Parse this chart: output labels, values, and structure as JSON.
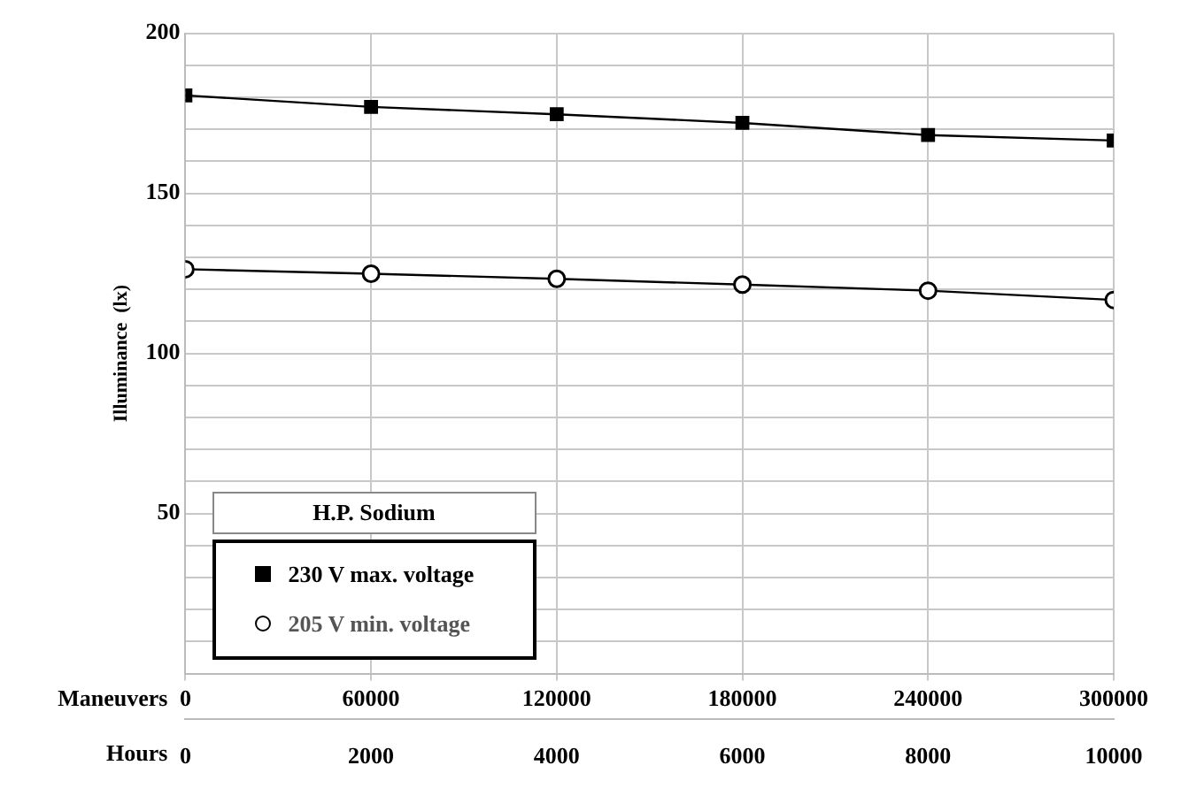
{
  "chart_data": {
    "type": "line",
    "ylabel": "Illuminance  (lx)",
    "xlabel": "Maneuvers",
    "x2label": "Hours",
    "legend_title": "H.P. Sodium",
    "x": [
      0,
      60000,
      120000,
      180000,
      240000,
      300000
    ],
    "xlim": [
      0,
      300000
    ],
    "xticks": [
      0,
      60000,
      120000,
      180000,
      240000,
      300000
    ],
    "x2lim": [
      0,
      10000
    ],
    "x2ticks": [
      0,
      2000,
      4000,
      6000,
      8000,
      10000
    ],
    "ylim": [
      0,
      200
    ],
    "yticks": [
      {
        "value": 0,
        "label": null
      },
      {
        "value": 10,
        "label": null
      },
      {
        "value": 20,
        "label": null
      },
      {
        "value": 30,
        "label": null
      },
      {
        "value": 40,
        "label": null
      },
      50,
      {
        "value": 60,
        "label": null
      },
      {
        "value": 70,
        "label": null
      },
      {
        "value": 80,
        "label": null
      },
      {
        "value": 90,
        "label": null
      },
      100,
      {
        "value": 110,
        "label": null
      },
      {
        "value": 120,
        "label": null
      },
      {
        "value": 130,
        "label": null
      },
      {
        "value": 140,
        "label": null
      },
      150,
      {
        "value": 160,
        "label": null
      },
      {
        "value": 170,
        "label": null
      },
      {
        "value": 180,
        "label": null
      },
      {
        "value": 190,
        "label": null
      },
      200
    ],
    "grid": true,
    "legend": "bottom left",
    "line_style": "solid",
    "series": [
      {
        "name": "230 V max. voltage",
        "color": "#000000",
        "marker": "square",
        "values": [
          180.6,
          177,
          174.7,
          172,
          168.2,
          166.5
        ]
      },
      {
        "name": "205 V min. voltage",
        "color": "#000000",
        "marker": "circle",
        "values": [
          126.3,
          124.9,
          123.3,
          121.5,
          119.6,
          116.7
        ]
      }
    ]
  }
}
